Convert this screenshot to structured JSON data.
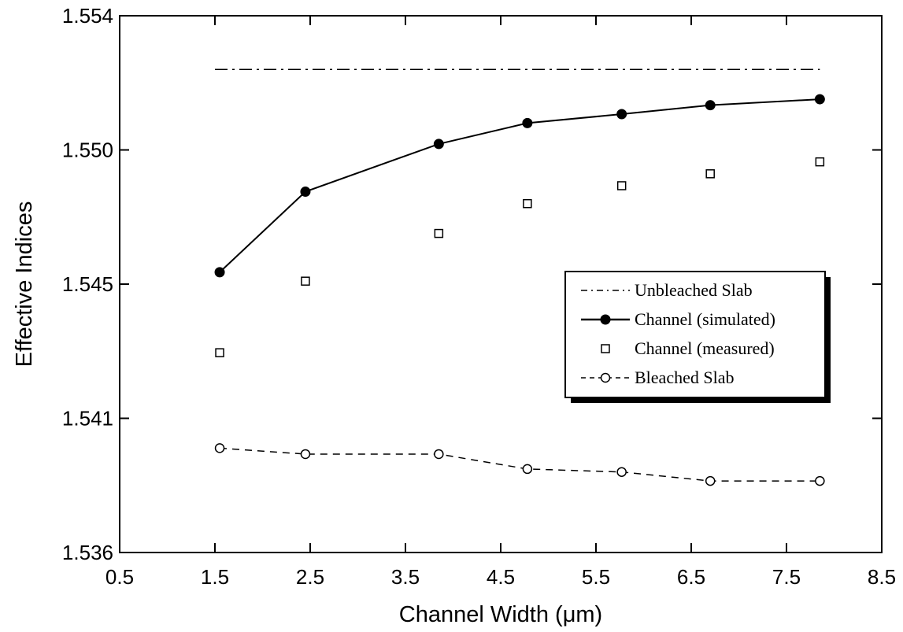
{
  "chart_data": {
    "type": "line",
    "xlabel": "Channel Width (μm)",
    "ylabel": "Effective  Indices",
    "xlim": [
      0.5,
      8.5
    ],
    "ylim": [
      1.536,
      1.554
    ],
    "x_ticks": [
      "0.5",
      "1.5",
      "2.5",
      "3.5",
      "4.5",
      "5.5",
      "6.5",
      "7.5",
      "8.5"
    ],
    "y_ticks": [
      "1.536",
      "1.541",
      "1.545",
      "1.550",
      "1.554"
    ],
    "y_tick_values": [
      1.536,
      1.5405,
      1.545,
      1.5495,
      1.554
    ],
    "grid": false,
    "legend_position": "right",
    "series": [
      {
        "name": "Unbleached Slab",
        "style": "dash-dot",
        "marker": "none",
        "x": [
          1.5,
          7.85
        ],
        "values": [
          1.5522,
          1.5522
        ]
      },
      {
        "name": "Channel (simulated)",
        "style": "solid",
        "marker": "filled-circle",
        "x": [
          1.55,
          2.45,
          3.85,
          4.78,
          5.77,
          6.7,
          7.85
        ],
        "values": [
          1.5454,
          1.5481,
          1.5497,
          1.5504,
          1.5507,
          1.551,
          1.5512
        ]
      },
      {
        "name": "Channel (measured)",
        "style": "none",
        "marker": "open-square",
        "x": [
          1.55,
          2.45,
          3.85,
          4.78,
          5.77,
          6.7,
          7.85
        ],
        "values": [
          1.5427,
          1.5451,
          1.5467,
          1.5477,
          1.5483,
          1.5487,
          1.5491
        ]
      },
      {
        "name": "Bleached Slab",
        "style": "dashed",
        "marker": "open-circle",
        "x": [
          1.55,
          2.45,
          3.85,
          4.78,
          5.77,
          6.7,
          7.85
        ],
        "values": [
          1.5395,
          1.5393,
          1.5393,
          1.5388,
          1.5387,
          1.5384,
          1.5384
        ]
      }
    ]
  }
}
